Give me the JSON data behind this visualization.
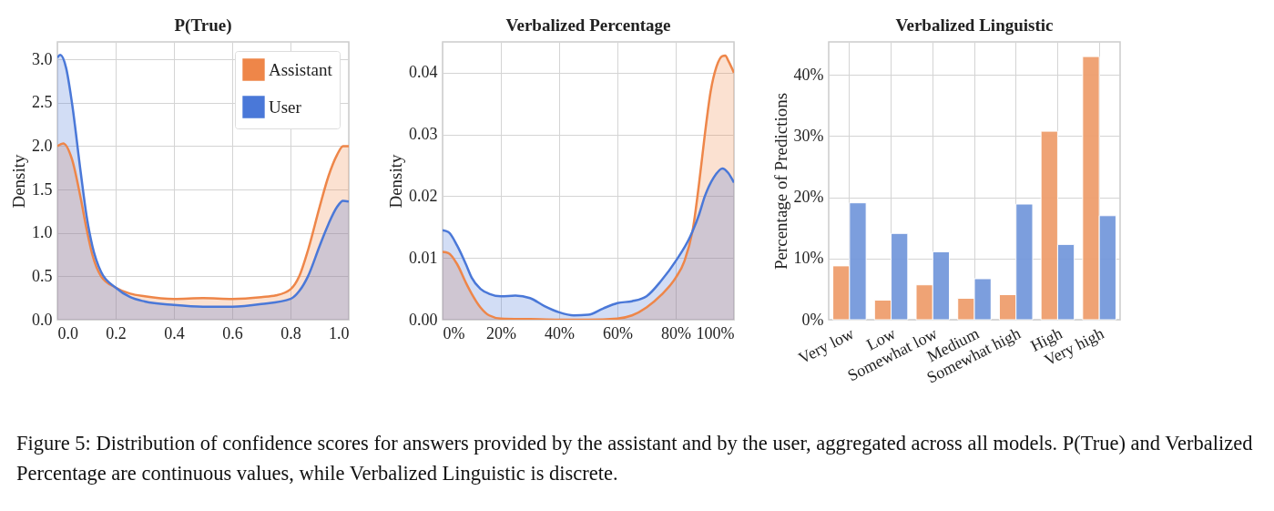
{
  "chart_data": [
    {
      "type": "area",
      "title": "P(True)",
      "ylabel": "Density",
      "xlim": [
        0,
        1
      ],
      "ylim": [
        0,
        3.2
      ],
      "xticks": [
        {
          "value": 0,
          "label": "0.0"
        },
        {
          "value": 0.2,
          "label": "0.2"
        },
        {
          "value": 0.4,
          "label": "0.4"
        },
        {
          "value": 0.6,
          "label": "0.6"
        },
        {
          "value": 0.8,
          "label": "0.8"
        },
        {
          "value": 1,
          "label": "1.0"
        }
      ],
      "yticks": [
        {
          "value": 0,
          "label": "0.0"
        },
        {
          "value": 0.5,
          "label": "0.5"
        },
        {
          "value": 1,
          "label": "1.0"
        },
        {
          "value": 1.5,
          "label": "1.5"
        },
        {
          "value": 2,
          "label": "2.0"
        },
        {
          "value": 2.5,
          "label": "2.5"
        },
        {
          "value": 3,
          "label": "3.0"
        }
      ],
      "grid": true,
      "legend": "top right",
      "series": [
        {
          "name": "Assistant",
          "color": "#ee8649",
          "x": [
            0,
            0.02,
            0.05,
            0.08,
            0.1,
            0.12,
            0.15,
            0.2,
            0.25,
            0.3,
            0.4,
            0.5,
            0.6,
            0.7,
            0.75,
            0.8,
            0.83,
            0.86,
            0.9,
            0.93,
            0.96,
            0.98,
            1
          ],
          "values": [
            2.0,
            2.03,
            1.85,
            1.4,
            1.05,
            0.75,
            0.5,
            0.37,
            0.3,
            0.27,
            0.24,
            0.25,
            0.24,
            0.26,
            0.28,
            0.35,
            0.5,
            0.8,
            1.3,
            1.65,
            1.9,
            2.0,
            2.0
          ]
        },
        {
          "name": "User",
          "color": "#4a78d8",
          "x": [
            0,
            0.01,
            0.03,
            0.05,
            0.08,
            0.1,
            0.12,
            0.15,
            0.2,
            0.25,
            0.3,
            0.4,
            0.5,
            0.6,
            0.7,
            0.8,
            0.83,
            0.86,
            0.9,
            0.93,
            0.96,
            0.98,
            1
          ],
          "values": [
            3.02,
            3.05,
            2.9,
            2.5,
            1.7,
            1.2,
            0.85,
            0.55,
            0.37,
            0.26,
            0.21,
            0.17,
            0.15,
            0.15,
            0.18,
            0.24,
            0.33,
            0.5,
            0.85,
            1.1,
            1.3,
            1.37,
            1.36
          ]
        }
      ],
      "annotations": [
        "Figure 5: Distribution of confidence scores for answers provided by the assistant and by the user, aggregated across all models. P(True) and Verbalized Percentage are continuous values, while Verbalized Linguistic is discrete."
      ]
    },
    {
      "type": "area",
      "title": "Verbalized Percentage",
      "ylabel": "Density",
      "xlim": [
        0,
        100
      ],
      "ylim": [
        0,
        0.045
      ],
      "xticks": [
        {
          "value": 0,
          "label": "0%"
        },
        {
          "value": 20,
          "label": "20%"
        },
        {
          "value": 40,
          "label": "40%"
        },
        {
          "value": 60,
          "label": "60%"
        },
        {
          "value": 80,
          "label": "80%"
        },
        {
          "value": 100,
          "label": "100%"
        }
      ],
      "yticks": [
        {
          "value": 0,
          "label": "0.00"
        },
        {
          "value": 0.01,
          "label": "0.01"
        },
        {
          "value": 0.02,
          "label": "0.02"
        },
        {
          "value": 0.03,
          "label": "0.03"
        },
        {
          "value": 0.04,
          "label": "0.04"
        }
      ],
      "grid": true,
      "series": [
        {
          "color": "#ee8649",
          "x": [
            0,
            2,
            5,
            8,
            10,
            13,
            16,
            20,
            30,
            40,
            50,
            60,
            65,
            70,
            75,
            80,
            83,
            86,
            88,
            90,
            92,
            94,
            96,
            97,
            98,
            100
          ],
          "values": [
            0.011,
            0.0108,
            0.009,
            0.006,
            0.0042,
            0.002,
            0.0007,
            0.0002,
            0.0001,
            0,
            0,
            0.0002,
            0.0007,
            0.002,
            0.004,
            0.0068,
            0.0095,
            0.015,
            0.022,
            0.03,
            0.037,
            0.041,
            0.0427,
            0.0428,
            0.042,
            0.04
          ]
        },
        {
          "color": "#4a78d8",
          "x": [
            0,
            2,
            5,
            8,
            10,
            13,
            16,
            20,
            25,
            30,
            35,
            40,
            45,
            50,
            55,
            60,
            65,
            70,
            75,
            80,
            85,
            88,
            90,
            93,
            96,
            98,
            100
          ],
          "values": [
            0.0145,
            0.0142,
            0.012,
            0.009,
            0.0068,
            0.005,
            0.0042,
            0.0038,
            0.0039,
            0.0035,
            0.0022,
            0.0012,
            0.0007,
            0.0008,
            0.0018,
            0.0027,
            0.003,
            0.0038,
            0.0063,
            0.0095,
            0.0135,
            0.017,
            0.02,
            0.023,
            0.0245,
            0.0238,
            0.0222
          ]
        }
      ]
    },
    {
      "type": "bar",
      "title": "Verbalized Linguistic",
      "ylabel": "Percentage of Predictions",
      "ylim": [
        0,
        45.4
      ],
      "yticks": [
        {
          "value": 0,
          "label": "0%"
        },
        {
          "value": 10,
          "label": "10%"
        },
        {
          "value": 20,
          "label": "20%"
        },
        {
          "value": 30,
          "label": "30%"
        },
        {
          "value": 40,
          "label": "40%"
        }
      ],
      "grid": true,
      "categories": [
        "Very low",
        "Low",
        "Somewhat low",
        "Medium",
        "Somewhat high",
        "High",
        "Very high"
      ],
      "series": [
        {
          "color": "#ef9f6e",
          "values": [
            8.8,
            3.2,
            5.7,
            3.5,
            4.1,
            30.8,
            43.0
          ]
        },
        {
          "color": "#7599dc",
          "values": [
            19.1,
            14.1,
            11.1,
            6.7,
            18.9,
            12.3,
            17.0
          ]
        }
      ]
    }
  ]
}
